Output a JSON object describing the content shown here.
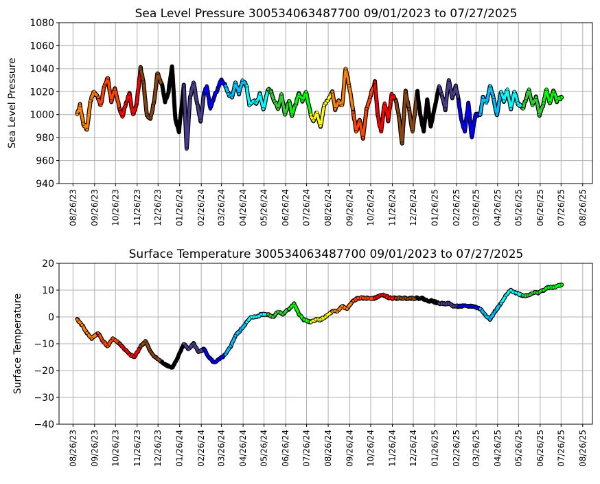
{
  "chart_data": [
    {
      "type": "scatter",
      "title": "Sea Level Pressure 300534063487700  09/01/2023 to 07/27/2025",
      "xlabel": "",
      "ylabel": "Sea Level Pressure",
      "ylim": [
        940,
        1080
      ],
      "yticks": [
        940,
        960,
        980,
        1000,
        1020,
        1040,
        1060,
        1080
      ],
      "xticks": [
        "08/26/23",
        "09/26/23",
        "10/26/23",
        "11/26/23",
        "12/26/23",
        "01/26/24",
        "02/26/24",
        "03/26/24",
        "04/26/24",
        "05/26/24",
        "06/26/24",
        "07/26/24",
        "08/26/24",
        "09/26/24",
        "10/26/24",
        "11/26/24",
        "12/26/24",
        "01/26/25",
        "02/26/25",
        "03/26/25",
        "04/26/25",
        "05/26/25",
        "06/26/25",
        "07/26/25",
        "08/26/25"
      ],
      "xlim": [
        "2023-08-06",
        "2025-09-09"
      ],
      "grid": true,
      "segment_colors": [
        "#ff8000",
        "#ff4500",
        "#ff0000",
        "#8b4513",
        "#000000",
        "#483d8b",
        "#0000ff",
        "#00bfff",
        "#00ffff",
        "#32cd32",
        "#00ff00",
        "#ffff00",
        "#ff8000",
        "#ff4500",
        "#ff0000",
        "#8b4513",
        "#000000",
        "#483d8b",
        "#0000ff",
        "#00bfff",
        "#00ffff",
        "#32cd32",
        "#00ff00"
      ],
      "segment_starts": [
        "2023-09-01",
        "2023-10-01",
        "2023-11-01",
        "2023-12-01",
        "2024-01-01",
        "2024-02-01",
        "2024-03-01",
        "2024-04-01",
        "2024-05-01",
        "2024-06-01",
        "2024-07-01",
        "2024-08-01",
        "2024-09-01",
        "2024-10-01",
        "2024-11-01",
        "2024-12-01",
        "2025-01-01",
        "2025-02-01",
        "2025-03-01",
        "2025-04-01",
        "2025-05-01",
        "2025-06-01",
        "2025-07-01",
        "2025-07-27"
      ],
      "x": [
        "2023-09-01",
        "2023-09-05",
        "2023-09-10",
        "2023-09-15",
        "2023-09-20",
        "2023-09-25",
        "2023-10-01",
        "2023-10-05",
        "2023-10-10",
        "2023-10-15",
        "2023-10-20",
        "2023-10-25",
        "2023-11-01",
        "2023-11-05",
        "2023-11-10",
        "2023-11-15",
        "2023-11-20",
        "2023-11-25",
        "2023-12-01",
        "2023-12-05",
        "2023-12-10",
        "2023-12-15",
        "2023-12-20",
        "2023-12-25",
        "2024-01-01",
        "2024-01-05",
        "2024-01-10",
        "2024-01-15",
        "2024-01-20",
        "2024-01-25",
        "2024-02-01",
        "2024-02-05",
        "2024-02-10",
        "2024-02-15",
        "2024-02-20",
        "2024-02-25",
        "2024-03-01",
        "2024-03-05",
        "2024-03-10",
        "2024-03-15",
        "2024-03-20",
        "2024-03-25",
        "2024-04-01",
        "2024-04-05",
        "2024-04-10",
        "2024-04-15",
        "2024-04-20",
        "2024-04-25",
        "2024-05-01",
        "2024-05-05",
        "2024-05-10",
        "2024-05-15",
        "2024-05-20",
        "2024-05-25",
        "2024-06-01",
        "2024-06-05",
        "2024-06-10",
        "2024-06-15",
        "2024-06-20",
        "2024-06-25",
        "2024-07-01",
        "2024-07-05",
        "2024-07-10",
        "2024-07-15",
        "2024-07-20",
        "2024-07-25",
        "2024-08-01",
        "2024-08-05",
        "2024-08-10",
        "2024-08-15",
        "2024-08-20",
        "2024-08-25",
        "2024-09-01",
        "2024-09-05",
        "2024-09-10",
        "2024-09-15",
        "2024-09-20",
        "2024-09-25",
        "2024-10-01",
        "2024-10-05",
        "2024-10-10",
        "2024-10-15",
        "2024-10-20",
        "2024-10-25",
        "2024-11-01",
        "2024-11-05",
        "2024-11-10",
        "2024-11-15",
        "2024-11-20",
        "2024-11-25",
        "2024-12-01",
        "2024-12-05",
        "2024-12-10",
        "2024-12-15",
        "2024-12-20",
        "2024-12-25",
        "2025-01-01",
        "2025-01-05",
        "2025-01-10",
        "2025-01-15",
        "2025-01-20",
        "2025-01-25",
        "2025-02-01",
        "2025-02-05",
        "2025-02-10",
        "2025-02-15",
        "2025-02-20",
        "2025-02-25",
        "2025-03-01",
        "2025-03-05",
        "2025-03-10",
        "2025-03-15",
        "2025-03-20",
        "2025-03-25",
        "2025-04-01",
        "2025-04-05",
        "2025-04-10",
        "2025-04-15",
        "2025-04-20",
        "2025-04-25",
        "2025-05-01",
        "2025-05-05",
        "2025-05-10",
        "2025-05-15",
        "2025-05-20",
        "2025-05-25",
        "2025-06-01",
        "2025-06-05",
        "2025-06-10",
        "2025-06-15",
        "2025-06-20",
        "2025-06-25",
        "2025-07-01",
        "2025-07-05",
        "2025-07-10",
        "2025-07-15",
        "2025-07-20",
        "2025-07-27"
      ],
      "y": [
        1000,
        1008,
        992,
        987,
        1012,
        1020,
        1015,
        1008,
        1025,
        1032,
        1012,
        1022,
        1005,
        998,
        1010,
        1018,
        1000,
        1008,
        1040,
        1028,
        1000,
        997,
        1010,
        1036,
        1025,
        1012,
        1020,
        1042,
        995,
        985,
        1025,
        970,
        1015,
        1028,
        1010,
        995,
        1018,
        1025,
        1005,
        1015,
        1022,
        1030,
        1025,
        1018,
        1015,
        1028,
        1018,
        1030,
        1025,
        1008,
        1012,
        1010,
        1018,
        1005,
        1022,
        1020,
        1012,
        1005,
        1018,
        1000,
        1012,
        1000,
        1008,
        1018,
        1012,
        1020,
        1000,
        995,
        1002,
        990,
        1008,
        1012,
        1020,
        1005,
        1012,
        1008,
        1040,
        1025,
        1002,
        985,
        995,
        980,
        1005,
        1015,
        1028,
        1000,
        985,
        1010,
        995,
        1018,
        1012,
        1000,
        975,
        1020,
        1005,
        985,
        1020,
        1000,
        985,
        1012,
        990,
        1005,
        1025,
        1018,
        1005,
        1030,
        1015,
        1025,
        1012,
        995,
        985,
        1010,
        980,
        1000,
        1000,
        1015,
        1010,
        1025,
        1015,
        1000,
        1020,
        1012,
        1022,
        1005,
        1020,
        1010,
        1005,
        1012,
        1022,
        1008,
        1015,
        1000,
        1010,
        1022,
        1010,
        1020,
        1012,
        1015
      ]
    },
    {
      "type": "scatter",
      "title": "Surface Temperature 300534063487700  09/01/2023 to 07/27/2025",
      "xlabel": "",
      "ylabel": "Surface Temperature",
      "ylim": [
        -40,
        20
      ],
      "yticks": [
        -40,
        -30,
        -20,
        -10,
        0,
        10,
        20
      ],
      "xticks": [
        "08/26/23",
        "09/26/23",
        "10/26/23",
        "11/26/23",
        "12/26/23",
        "01/26/24",
        "02/26/24",
        "03/26/24",
        "04/26/24",
        "05/26/24",
        "06/26/24",
        "07/26/24",
        "08/26/24",
        "09/26/24",
        "10/26/24",
        "11/26/24",
        "12/26/24",
        "01/26/25",
        "02/26/25",
        "03/26/25",
        "04/26/25",
        "05/26/25",
        "06/26/25",
        "07/26/25",
        "08/26/25"
      ],
      "xlim": [
        "2023-08-06",
        "2025-09-09"
      ],
      "grid": true,
      "segment_colors": [
        "#ff8000",
        "#ff4500",
        "#ff0000",
        "#8b4513",
        "#000000",
        "#483d8b",
        "#0000ff",
        "#00bfff",
        "#00ffff",
        "#32cd32",
        "#00ff00",
        "#ffff00",
        "#ff8000",
        "#ff4500",
        "#ff0000",
        "#8b4513",
        "#000000",
        "#483d8b",
        "#0000ff",
        "#00bfff",
        "#00ffff",
        "#32cd32",
        "#00ff00"
      ],
      "segment_starts": [
        "2023-09-01",
        "2023-10-01",
        "2023-11-01",
        "2023-12-01",
        "2024-01-01",
        "2024-02-01",
        "2024-03-01",
        "2024-04-01",
        "2024-05-01",
        "2024-06-01",
        "2024-07-01",
        "2024-08-01",
        "2024-09-01",
        "2024-10-01",
        "2024-11-01",
        "2024-12-01",
        "2025-01-01",
        "2025-02-01",
        "2025-03-01",
        "2025-04-01",
        "2025-05-01",
        "2025-06-01",
        "2025-07-01",
        "2025-07-27"
      ],
      "x": [
        "2023-09-01",
        "2023-09-08",
        "2023-09-15",
        "2023-09-22",
        "2023-10-01",
        "2023-10-08",
        "2023-10-15",
        "2023-10-22",
        "2023-11-01",
        "2023-11-08",
        "2023-11-15",
        "2023-11-22",
        "2023-12-01",
        "2023-12-08",
        "2023-12-15",
        "2023-12-22",
        "2024-01-01",
        "2024-01-08",
        "2024-01-15",
        "2024-01-22",
        "2024-02-01",
        "2024-02-08",
        "2024-02-15",
        "2024-02-22",
        "2024-03-01",
        "2024-03-08",
        "2024-03-15",
        "2024-03-22",
        "2024-04-01",
        "2024-04-08",
        "2024-04-15",
        "2024-04-22",
        "2024-05-01",
        "2024-05-08",
        "2024-05-15",
        "2024-05-22",
        "2024-06-01",
        "2024-06-08",
        "2024-06-15",
        "2024-06-22",
        "2024-07-01",
        "2024-07-08",
        "2024-07-15",
        "2024-07-22",
        "2024-08-01",
        "2024-08-08",
        "2024-08-15",
        "2024-08-22",
        "2024-09-01",
        "2024-09-08",
        "2024-09-15",
        "2024-09-22",
        "2024-10-01",
        "2024-10-08",
        "2024-10-15",
        "2024-10-22",
        "2024-11-01",
        "2024-11-08",
        "2024-11-15",
        "2024-11-22",
        "2024-12-01",
        "2024-12-08",
        "2024-12-15",
        "2024-12-22",
        "2025-01-01",
        "2025-01-08",
        "2025-01-15",
        "2025-01-22",
        "2025-02-01",
        "2025-02-08",
        "2025-02-15",
        "2025-02-22",
        "2025-03-01",
        "2025-03-08",
        "2025-03-15",
        "2025-03-22",
        "2025-04-01",
        "2025-04-08",
        "2025-04-15",
        "2025-04-22",
        "2025-05-01",
        "2025-05-08",
        "2025-05-15",
        "2025-05-22",
        "2025-06-01",
        "2025-06-08",
        "2025-06-15",
        "2025-06-22",
        "2025-07-01",
        "2025-07-08",
        "2025-07-15",
        "2025-07-27"
      ],
      "y": [
        -1,
        -3,
        -6,
        -8,
        -6,
        -9,
        -11,
        -8,
        -10,
        -12,
        -14,
        -15,
        -11,
        -9,
        -13,
        -15,
        -17,
        -18,
        -19,
        -16,
        -10,
        -12,
        -10,
        -13,
        -12,
        -15,
        -17,
        -16,
        -14,
        -11,
        -7,
        -5,
        -2,
        0,
        0,
        1,
        1,
        0,
        2,
        1,
        3,
        5,
        1,
        -1,
        -2,
        -1,
        -1,
        0,
        2,
        2,
        4,
        3,
        6,
        7,
        7,
        7,
        7,
        8,
        8,
        7,
        7,
        7,
        7,
        7,
        7,
        7,
        6,
        6,
        5,
        5,
        5,
        4,
        4,
        4,
        4,
        4,
        3,
        1,
        -1,
        2,
        5,
        8,
        10,
        9,
        8,
        8,
        9,
        9,
        10,
        11,
        11,
        12
      ]
    }
  ]
}
